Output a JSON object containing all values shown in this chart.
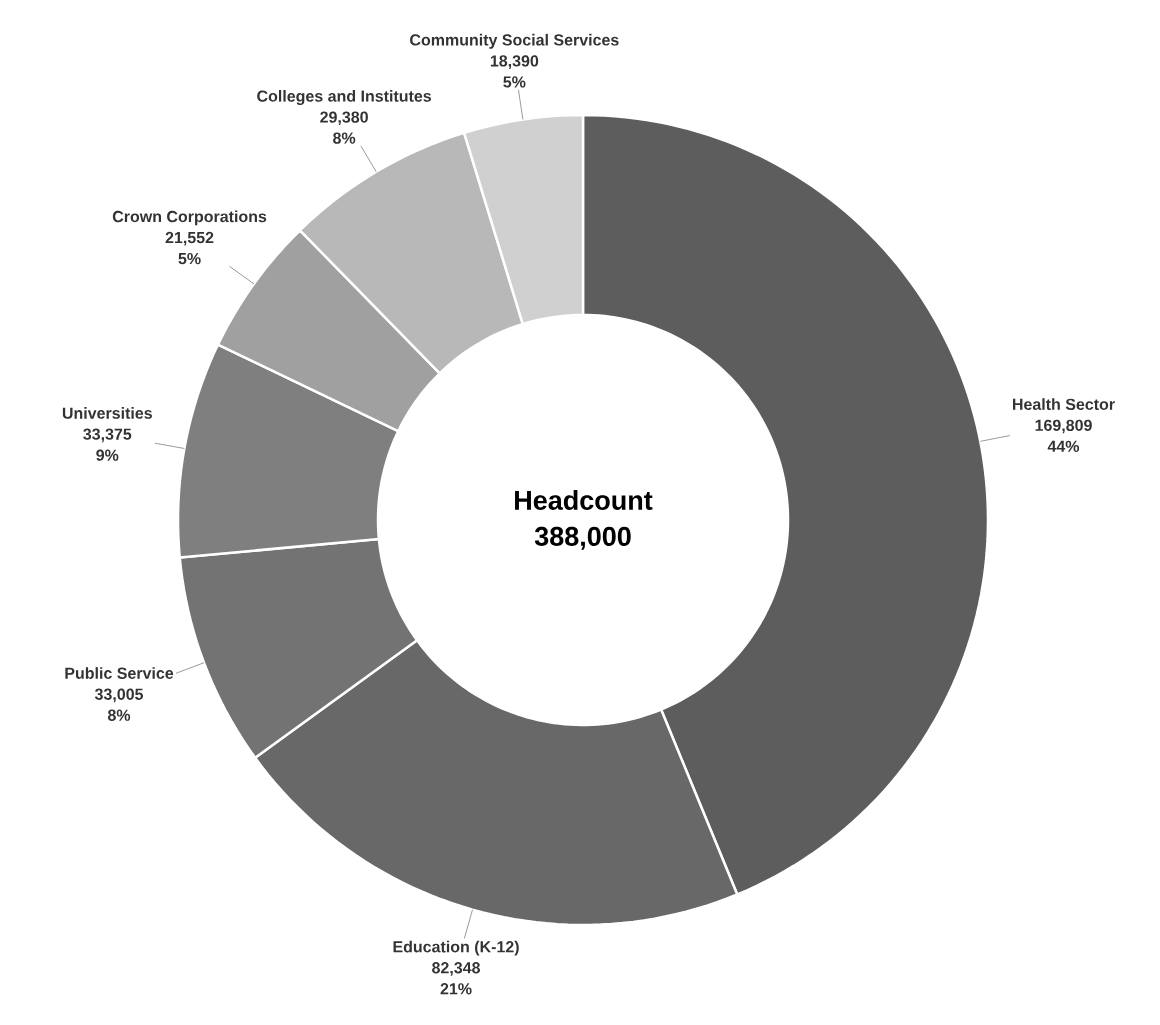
{
  "chart_data": {
    "type": "donut",
    "title": "Headcount",
    "subtitle": "388,000",
    "categories": [
      "Health Sector",
      "Education (K-12)",
      "Public Service",
      "Universities",
      "Crown Corporations",
      "Colleges and Institutes",
      "Community Social Services"
    ],
    "values": [
      169809,
      82348,
      33005,
      33375,
      21552,
      29380,
      18390
    ],
    "value_labels": [
      "169,809",
      "82,348",
      "33,005",
      "33,375",
      "21,552",
      "29,380",
      "18,390"
    ],
    "colors": [
      "#5d5d5d",
      "#686868",
      "#737373",
      "#7f7f7f",
      "#a0a0a0",
      "#b8b8b8",
      "#d0d0d0"
    ],
    "annotations": [
      "44%",
      "21%",
      "8%",
      "9%",
      "5%",
      "8%",
      "5%"
    ]
  }
}
